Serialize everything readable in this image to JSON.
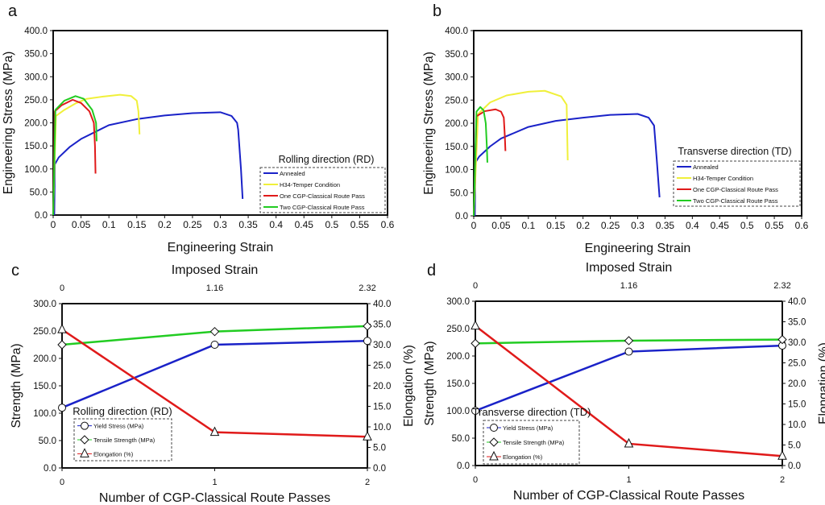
{
  "chart_data": [
    {
      "panel": "a",
      "type": "line",
      "xlabel": "Engineering Strain",
      "ylabel": "Engineering Stress (MPa)",
      "xlim": [
        0,
        0.6
      ],
      "ylim": [
        0,
        400
      ],
      "xticks": [
        "0",
        "0.05",
        "0.1",
        "0.15",
        "0.2",
        "0.25",
        "0.3",
        "0.35",
        "0.4",
        "0.45",
        "0.5",
        "0.55",
        "0.6"
      ],
      "yticks": [
        "0.0",
        "50.0",
        "100.0",
        "150.0",
        "200.0",
        "250.0",
        "300.0",
        "350.0",
        "400.0"
      ],
      "legend_title": "Rolling direction (RD)",
      "legend_position": "bottom-right",
      "series": [
        {
          "name": "Annealed",
          "color": "#1a22c8",
          "points": [
            [
              0.002,
              0
            ],
            [
              0.003,
              110
            ],
            [
              0.01,
              125
            ],
            [
              0.03,
              148
            ],
            [
              0.05,
              165
            ],
            [
              0.075,
              180
            ],
            [
              0.1,
              195
            ],
            [
              0.15,
              208
            ],
            [
              0.2,
              216
            ],
            [
              0.25,
              221
            ],
            [
              0.3,
              223
            ],
            [
              0.32,
              215
            ],
            [
              0.33,
              200
            ],
            [
              0.332,
              185
            ],
            [
              0.337,
              100
            ],
            [
              0.34,
              35
            ]
          ]
        },
        {
          "name": "H34-Temper Condition",
          "color": "#f0f03a",
          "points": [
            [
              0,
              0
            ],
            [
              0.005,
              215
            ],
            [
              0.02,
              228
            ],
            [
              0.04,
              242
            ],
            [
              0.06,
              252
            ],
            [
              0.09,
              257
            ],
            [
              0.12,
              261
            ],
            [
              0.14,
              258
            ],
            [
              0.15,
              248
            ],
            [
              0.153,
              225
            ],
            [
              0.155,
              175
            ]
          ]
        },
        {
          "name": "One CGP-Classical Route Pass",
          "color": "#e01a1a",
          "points": [
            [
              0,
              0
            ],
            [
              0.003,
              225
            ],
            [
              0.015,
              238
            ],
            [
              0.035,
              250
            ],
            [
              0.05,
              243
            ],
            [
              0.065,
              225
            ],
            [
              0.073,
              200
            ],
            [
              0.075,
              150
            ],
            [
              0.076,
              90
            ]
          ]
        },
        {
          "name": "Two CGP-Classical Route Pass",
          "color": "#22cc22",
          "points": [
            [
              0,
              0
            ],
            [
              0.004,
              228
            ],
            [
              0.02,
              248
            ],
            [
              0.04,
              258
            ],
            [
              0.055,
              252
            ],
            [
              0.07,
              228
            ],
            [
              0.077,
              200
            ],
            [
              0.078,
              160
            ]
          ]
        }
      ]
    },
    {
      "panel": "b",
      "type": "line",
      "xlabel": "Engineering Strain",
      "ylabel": "Engineering Stress (MPa)",
      "xlim": [
        0,
        0.6
      ],
      "ylim": [
        0,
        400
      ],
      "xticks": [
        "0",
        "0.05",
        "0.1",
        "0.15",
        "0.2",
        "0.25",
        "0.3",
        "0.35",
        "0.4",
        "0.45",
        "0.5",
        "0.55",
        "0.6"
      ],
      "yticks": [
        "0.0",
        "50.0",
        "100.0",
        "150.0",
        "200.0",
        "250.0",
        "300.0",
        "350.0",
        "400.0"
      ],
      "legend_title": "Transverse direction (TD)",
      "legend_position": "bottom-right",
      "series": [
        {
          "name": "Annealed",
          "color": "#1a22c8",
          "points": [
            [
              0.002,
              0
            ],
            [
              0.003,
              115
            ],
            [
              0.01,
              128
            ],
            [
              0.03,
              150
            ],
            [
              0.05,
              167
            ],
            [
              0.1,
              192
            ],
            [
              0.15,
              205
            ],
            [
              0.2,
              212
            ],
            [
              0.25,
              218
            ],
            [
              0.3,
              220
            ],
            [
              0.32,
              212
            ],
            [
              0.33,
              195
            ],
            [
              0.335,
              120
            ],
            [
              0.34,
              40
            ]
          ]
        },
        {
          "name": "H34-Temper Condition",
          "color": "#f0f03a",
          "points": [
            [
              0,
              0
            ],
            [
              0.008,
              220
            ],
            [
              0.03,
              245
            ],
            [
              0.06,
              260
            ],
            [
              0.1,
              268
            ],
            [
              0.13,
              270
            ],
            [
              0.16,
              258
            ],
            [
              0.17,
              240
            ],
            [
              0.171,
              180
            ],
            [
              0.172,
              120
            ]
          ]
        },
        {
          "name": "One CGP-Classical Route Pass",
          "color": "#e01a1a",
          "points": [
            [
              0,
              0
            ],
            [
              0.005,
              215
            ],
            [
              0.02,
              226
            ],
            [
              0.04,
              230
            ],
            [
              0.05,
              225
            ],
            [
              0.055,
              212
            ],
            [
              0.057,
              170
            ],
            [
              0.058,
              140
            ]
          ]
        },
        {
          "name": "Two CGP-Classical Route Pass",
          "color": "#22cc22",
          "points": [
            [
              0,
              0
            ],
            [
              0.005,
              225
            ],
            [
              0.012,
              235
            ],
            [
              0.018,
              228
            ],
            [
              0.022,
              200
            ],
            [
              0.024,
              150
            ],
            [
              0.025,
              115
            ]
          ]
        }
      ]
    },
    {
      "panel": "c",
      "type": "line",
      "title": "Imposed Strain",
      "xlabel": "Number of CGP-Classical Route Passes",
      "ylabel": "Strength (MPa)",
      "y2label": "Elongation (%)",
      "x": [
        0,
        1,
        2
      ],
      "xticks": [
        "0",
        "1",
        "2"
      ],
      "top_ticks": [
        "0",
        "1.16",
        "2.32"
      ],
      "ylim": [
        0,
        300
      ],
      "y2lim": [
        0,
        40
      ],
      "yticks": [
        "0.0",
        "50.0",
        "100.0",
        "150.0",
        "200.0",
        "250.0",
        "300.0"
      ],
      "y2ticks": [
        "0.0",
        "5.0",
        "10.0",
        "15.0",
        "20.0",
        "25.0",
        "30.0",
        "35.0",
        "40.0"
      ],
      "legend_title": "Rolling direction (RD)",
      "legend_position": "bottom-left",
      "series": [
        {
          "name": "Yield Stress (MPa)",
          "color": "#1a22c8",
          "marker": "circle",
          "axis": "left",
          "values": [
            110,
            225,
            232
          ]
        },
        {
          "name": "Tensile Strength (MPa)",
          "color": "#22cc22",
          "marker": "diamond",
          "axis": "left",
          "values": [
            225,
            249,
            259
          ]
        },
        {
          "name": "Elongation (%)",
          "color": "#e01a1a",
          "marker": "triangle",
          "axis": "right",
          "values": [
            33.7,
            8.7,
            7.6
          ]
        }
      ]
    },
    {
      "panel": "d",
      "type": "line",
      "title": "Imposed Strain",
      "xlabel": "Number of CGP-Classical Route Passes",
      "ylabel": "Strength (MPa)",
      "y2label": "Elongation (%)",
      "x": [
        0,
        1,
        2
      ],
      "xticks": [
        "0",
        "1",
        "2"
      ],
      "top_ticks": [
        "0",
        "1.16",
        "2.32"
      ],
      "ylim": [
        0,
        300
      ],
      "y2lim": [
        0,
        40
      ],
      "yticks": [
        "0.0",
        "50.0",
        "100.0",
        "150.0",
        "200.0",
        "250.0",
        "300.0"
      ],
      "y2ticks": [
        "0.0",
        "5.0",
        "10.0",
        "15.0",
        "20.0",
        "25.0",
        "30.0",
        "35.0",
        "40.0"
      ],
      "legend_title": "Transverse direction (TD)",
      "legend_position": "bottom-left",
      "series": [
        {
          "name": "Yield Stress (MPa)",
          "color": "#1a22c8",
          "marker": "circle",
          "axis": "left",
          "values": [
            100,
            208,
            219
          ]
        },
        {
          "name": "Tensile Strength (MPa)",
          "color": "#22cc22",
          "marker": "diamond",
          "axis": "left",
          "values": [
            223,
            228,
            230
          ]
        },
        {
          "name": "Elongation (%)",
          "color": "#e01a1a",
          "marker": "triangle",
          "axis": "right",
          "values": [
            34.0,
            5.3,
            2.3
          ]
        }
      ]
    }
  ]
}
